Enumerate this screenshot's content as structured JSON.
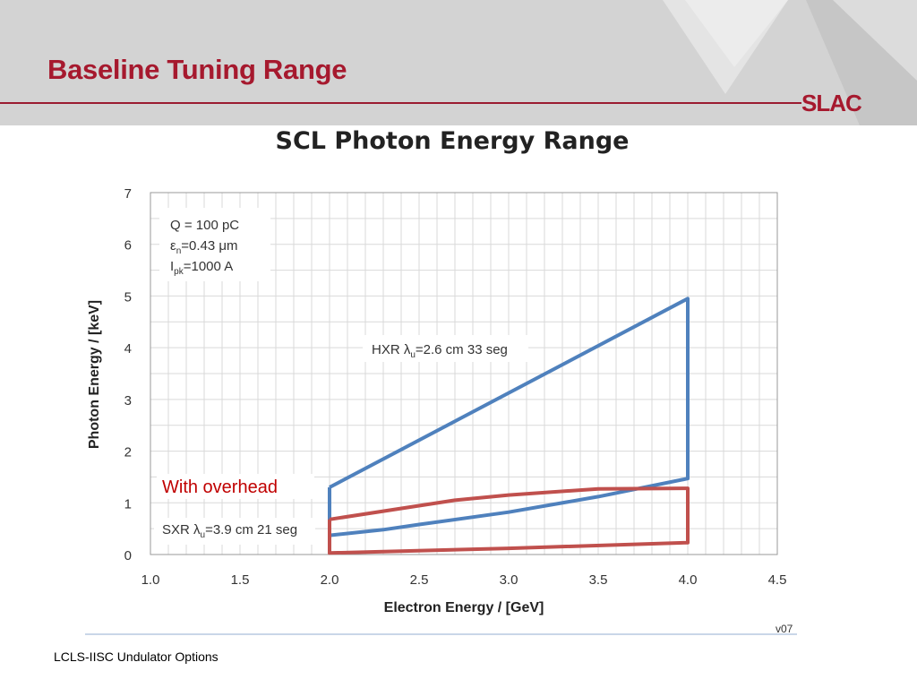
{
  "slide": {
    "title": "Baseline Tuning Range",
    "logo": "SLAC",
    "footer": "LCLS-IISC Undulator Options",
    "accent_color": "#a6192e"
  },
  "chart_data": {
    "type": "line",
    "title": "SCL Photon Energy Range",
    "xlabel": "Electron Energy / [GeV]",
    "ylabel": "Photon Energy / [keV]",
    "xlim": [
      1.0,
      4.5
    ],
    "ylim": [
      0,
      7
    ],
    "x_ticks": [
      "1.0",
      "1.5",
      "2.0",
      "2.5",
      "3.0",
      "3.5",
      "4.0",
      "4.5"
    ],
    "y_ticks": [
      "0",
      "1",
      "2",
      "3",
      "4",
      "5",
      "6",
      "7"
    ],
    "grid": true,
    "series": [
      {
        "name": "HXR λu=2.6 cm 33 seg",
        "color": "#4f81bd",
        "points": [
          [
            2.0,
            1.3
          ],
          [
            4.0,
            4.95
          ],
          [
            4.0,
            1.47
          ],
          [
            3.5,
            1.12
          ],
          [
            3.0,
            0.82
          ],
          [
            2.5,
            0.58
          ],
          [
            2.3,
            0.48
          ],
          [
            2.0,
            0.37
          ],
          [
            2.0,
            1.3
          ]
        ]
      },
      {
        "name": "SXR λu=3.9 cm 21 seg",
        "color": "#c0504d",
        "points": [
          [
            2.0,
            0.68
          ],
          [
            2.7,
            1.05
          ],
          [
            3.0,
            1.15
          ],
          [
            3.5,
            1.27
          ],
          [
            4.0,
            1.28
          ],
          [
            4.0,
            0.23
          ],
          [
            3.0,
            0.12
          ],
          [
            2.0,
            0.03
          ],
          [
            2.0,
            0.68
          ]
        ]
      }
    ],
    "annotations": {
      "params_line1": "Q = 100 pC",
      "params_line2_a": "ε",
      "params_line2_sub": "n",
      "params_line2_b": "=0.43 μm",
      "params_line3_a": "I",
      "params_line3_sub": "pk",
      "params_line3_b": "=1000 A",
      "hxr_label_a": "HXR  λ",
      "hxr_label_sub": "u",
      "hxr_label_b": "=2.6 cm 33 seg",
      "sxr_label_a": "SXR  λ",
      "sxr_label_sub": "u",
      "sxr_label_b": "=3.9 cm  21 seg",
      "overhead": "With overhead",
      "version": "v07"
    }
  }
}
